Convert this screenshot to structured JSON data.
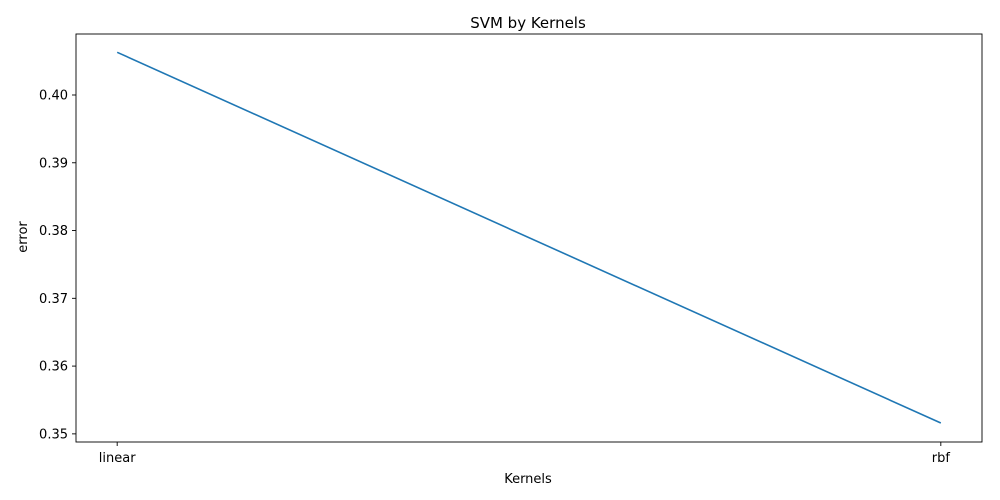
{
  "chart_data": {
    "type": "line",
    "title": "SVM by Kernels",
    "xlabel": "Kernels",
    "ylabel": "error",
    "categories": [
      "linear",
      "rbf"
    ],
    "series": [
      {
        "values": [
          0.4063,
          0.3516
        ],
        "color": "#1f77b4"
      }
    ],
    "ylim": [
      0.3488,
      0.409
    ],
    "yticks": [
      "0.35",
      "0.36",
      "0.37",
      "0.38",
      "0.39",
      "0.40"
    ],
    "grid": false,
    "legend": "none"
  }
}
